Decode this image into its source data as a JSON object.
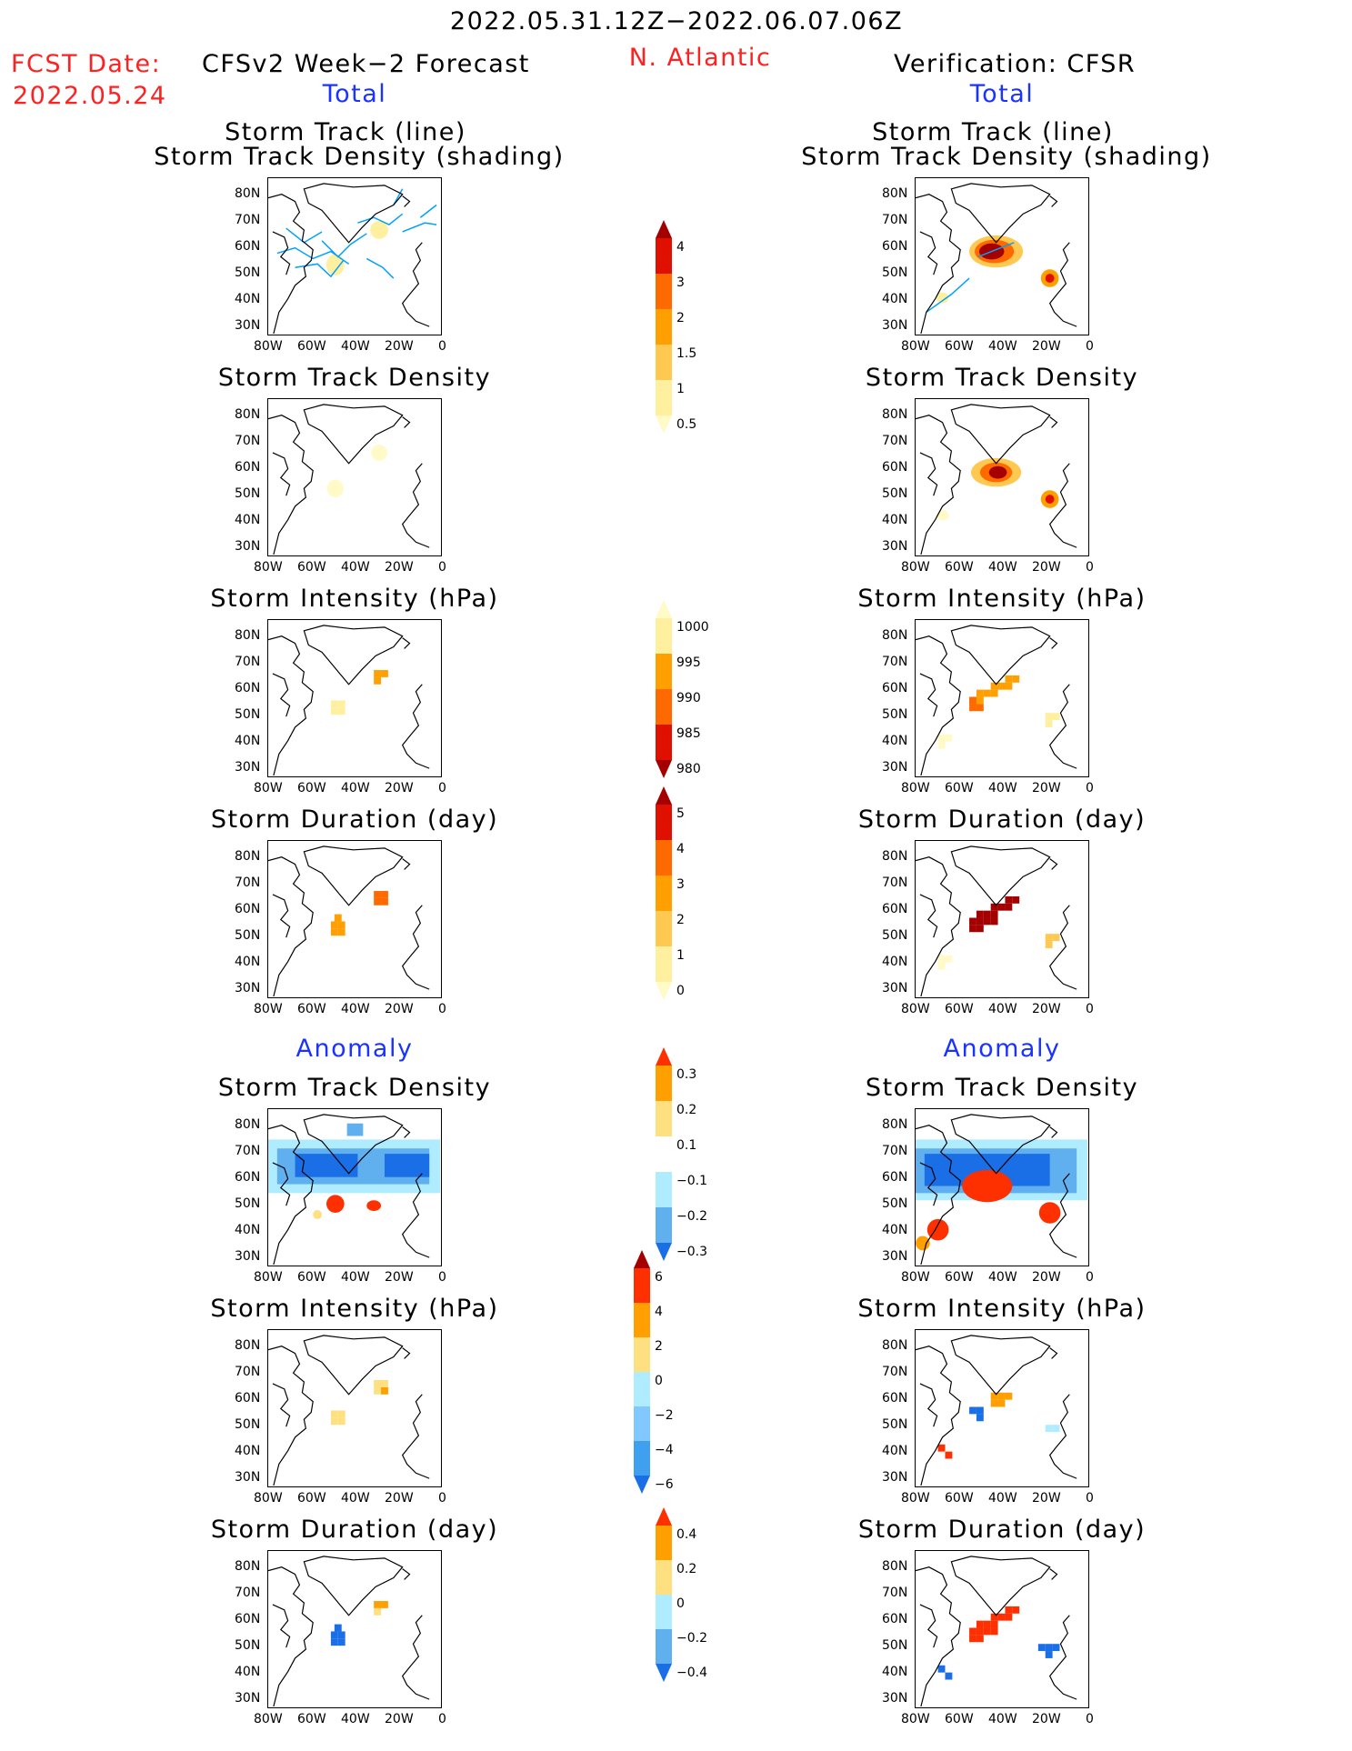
{
  "header": {
    "date_range": "2022.05.31.12Z−2022.06.07.06Z",
    "fcst_date_label": "FCST Date:",
    "fcst_date_value": "2022.05.24",
    "left_title": "CFSv2 Week−2 Forecast",
    "region": "N. Atlantic",
    "right_title": "Verification: CFSR"
  },
  "sections": {
    "total": "Total",
    "anomaly": "Anomaly"
  },
  "panel_titles": {
    "track_line": "Storm Track (line)",
    "track_density_shading": "Storm Track Density (shading)",
    "track_density": "Storm Track Density",
    "intensity": "Storm Intensity (hPa)",
    "duration": "Storm Duration (day)"
  },
  "axes": {
    "lat_labels": [
      "80N",
      "70N",
      "60N",
      "50N",
      "40N",
      "30N"
    ],
    "lon_labels": [
      "80W",
      "60W",
      "40W",
      "20W",
      "0"
    ]
  },
  "colorbars": [
    {
      "name": "density-colorbar",
      "labels": [
        "4",
        "3",
        "2",
        "1.5",
        "1",
        "0.5"
      ],
      "colors": [
        "#a50000",
        "#e01000",
        "#ff6a00",
        "#ffa000",
        "#ffc850",
        "#fff0a0",
        "#fffac8"
      ]
    },
    {
      "name": "intensity-colorbar",
      "labels": [
        "1000",
        "995",
        "990",
        "985",
        "980"
      ],
      "colors": [
        "#fffac8",
        "#fff0a0",
        "#ffa000",
        "#ff6a00",
        "#e01000",
        "#a50000"
      ]
    },
    {
      "name": "duration-colorbar",
      "labels": [
        "5",
        "4",
        "3",
        "2",
        "1",
        "0"
      ],
      "colors": [
        "#a50000",
        "#e01000",
        "#ff6a00",
        "#ffa000",
        "#ffc850",
        "#fff0a0",
        "#fffac8"
      ]
    },
    {
      "name": "density-anomaly-colorbar",
      "labels": [
        "0.3",
        "0.2",
        "0.1",
        "−0.1",
        "−0.2",
        "−0.3"
      ],
      "colors": [
        "#ff3000",
        "#ffa000",
        "#ffe080",
        "#ffffff",
        "#b0ecff",
        "#60b0f0",
        "#1a6ee6"
      ]
    },
    {
      "name": "intensity-anomaly-colorbar",
      "labels": [
        "6",
        "4",
        "2",
        "0",
        "−2",
        "−4",
        "−6"
      ],
      "colors": [
        "#a50000",
        "#ff3000",
        "#ffa000",
        "#ffe080",
        "#b0ecff",
        "#80c8ff",
        "#40a0f0",
        "#1a6ee6"
      ]
    },
    {
      "name": "duration-anomaly-colorbar",
      "labels": [
        "0.4",
        "0.2",
        "0",
        "−0.2",
        "−0.4"
      ],
      "colors": [
        "#ff3000",
        "#ffa000",
        "#ffe080",
        "#b0ecff",
        "#60b0f0",
        "#1a6ee6"
      ]
    }
  ]
}
